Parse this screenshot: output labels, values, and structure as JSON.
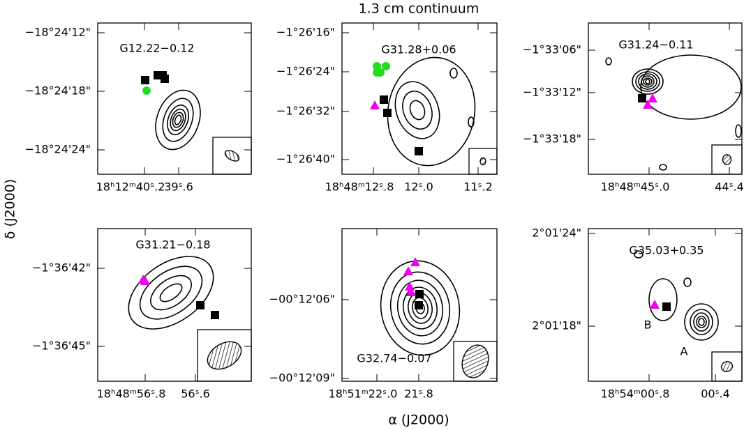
{
  "figure": {
    "title": "1.3 cm continuum",
    "xlabel": "α (J2000)",
    "ylabel": "δ (J2000)",
    "panels": [
      {
        "name": "G12.22−0.12",
        "yticks": [
          "−18°24'12\"",
          "−18°24'18\"",
          "−18°24'24\""
        ],
        "xticks": [
          "18ʰ12ᵐ40ˢ.2",
          "39ˢ.6"
        ]
      },
      {
        "name": "G31.28+0.06",
        "yticks": [
          "−1°26'16\"",
          "−1°26'24\"",
          "−1°26'32\"",
          "−1°26'40\""
        ],
        "xticks": [
          "18ʰ48ᵐ12ˢ.8",
          "12ˢ.0",
          "11ˢ.2"
        ]
      },
      {
        "name": "G31.24−0.11",
        "yticks": [
          "−1°33'06\"",
          "−1°33'12\"",
          "−1°33'18\""
        ],
        "xticks": [
          "18ʰ48ᵐ45ˢ.0",
          "44ˢ.4"
        ]
      },
      {
        "name": "G31.21−0.18",
        "yticks": [
          "−1°36'42\"",
          "−1°36'45\""
        ],
        "xticks": [
          "18ʰ48ᵐ56ˢ.8",
          "56ˢ.6"
        ]
      },
      {
        "name": "G32.74−0.07",
        "yticks": [
          "−00°12'06\"",
          "−00°12'09\""
        ],
        "xticks": [
          "18ʰ51ᵐ22ˢ.0",
          "21ˢ.8"
        ]
      },
      {
        "name": "G35.03+0.35",
        "yticks": [
          "2°01'24\"",
          "2°01'18\""
        ],
        "xticks": [
          "18ʰ54ᵐ00ˢ.8",
          "00ˢ.4"
        ],
        "labels": [
          "B",
          "A"
        ]
      }
    ]
  }
}
